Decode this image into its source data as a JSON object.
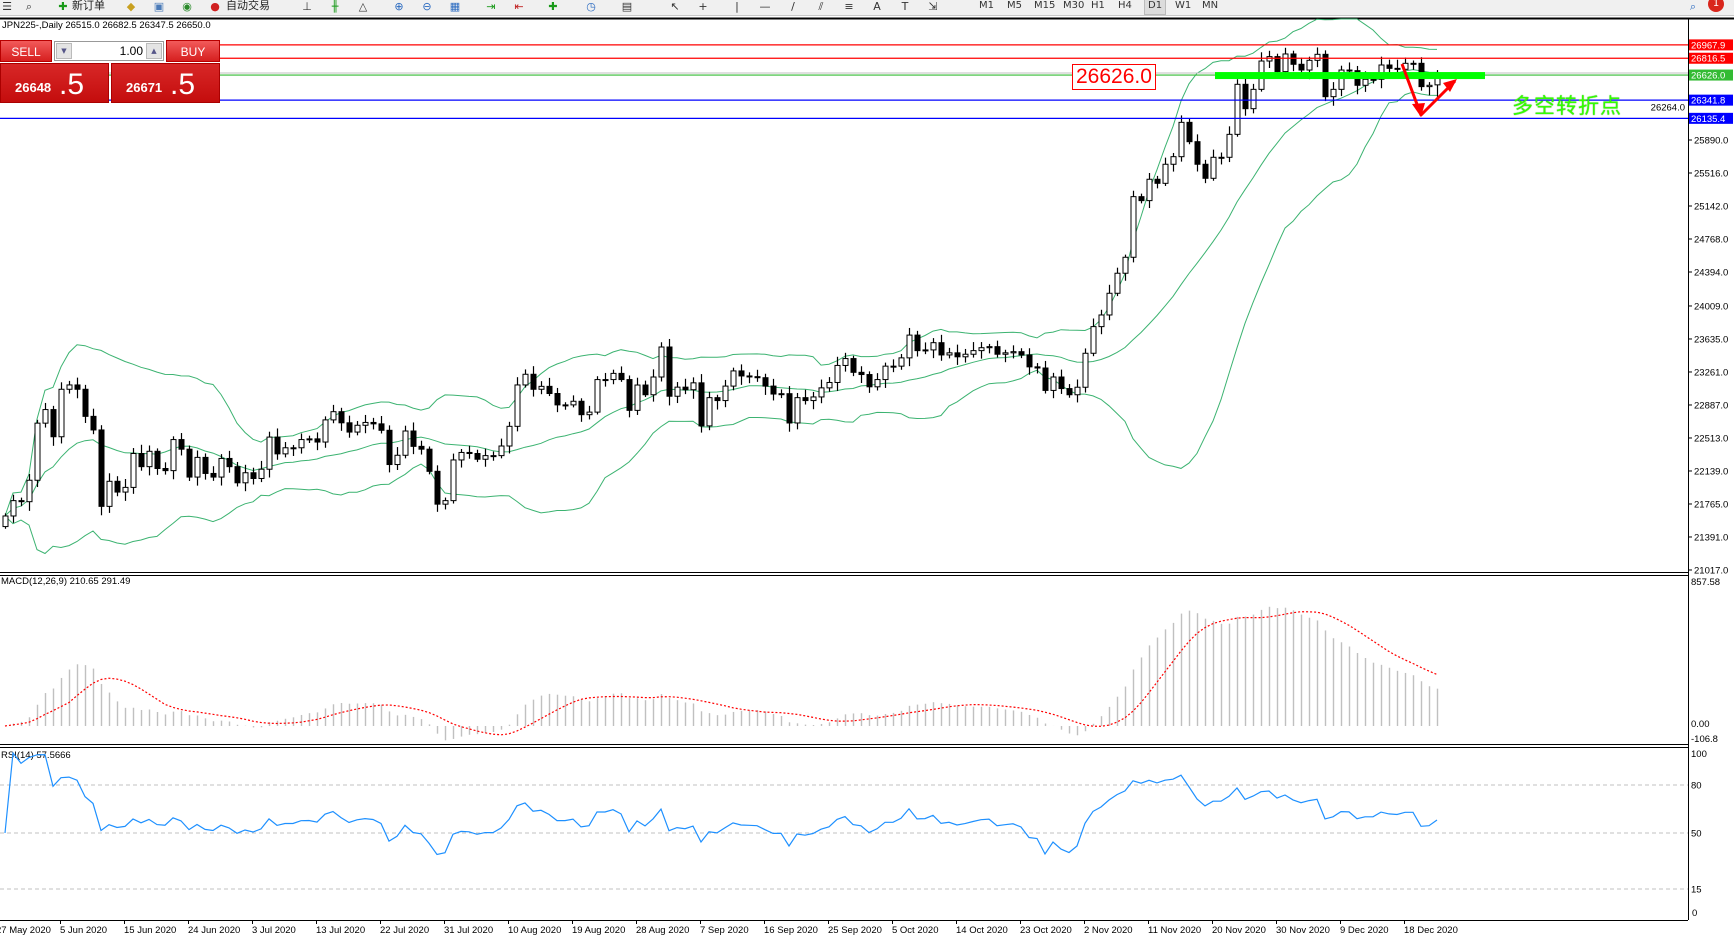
{
  "toolbar": {
    "new_order_label": "新订单",
    "auto_trading_label": "自动交易",
    "timeframes": [
      "M1",
      "M5",
      "M15",
      "M30",
      "H1",
      "H4",
      "D1",
      "W1",
      "MN"
    ],
    "active_timeframe": "D1",
    "notification_count": "1"
  },
  "chart_header": "JPN225-,Daily  26515.0 26682.5 26347.5 26650.0",
  "one_click": {
    "sell_label": "SELL",
    "buy_label": "BUY",
    "lot": "1.00",
    "sell_price_main": "26648",
    "sell_price_big": ".5",
    "buy_price_main": "26671",
    "buy_price_big": ".5"
  },
  "annotations": {
    "price_box": "26626.0",
    "pivot_text": "多空转折点",
    "pivot_bar_color": "#00ff00",
    "arrow_color": "#ff0000"
  },
  "chart_data": {
    "type": "candlestick",
    "symbol": "JPN225-",
    "timeframe": "Daily",
    "last_bar": {
      "open": 26515.0,
      "high": 26682.5,
      "low": 26347.5,
      "close": 26650.0
    },
    "closes": [
      21629,
      21803,
      21791,
      22034,
      22681,
      22835,
      22527,
      23065,
      23114,
      23065,
      22758,
      22604,
      21738,
      22022,
      21900,
      21953,
      22337,
      22188,
      22362,
      22167,
      22143,
      22495,
      22386,
      22070,
      22293,
      22111,
      22070,
      22281,
      22188,
      22005,
      22119,
      22054,
      22159,
      22523,
      22333,
      22402,
      22402,
      22495,
      22503,
      22467,
      22718,
      22811,
      22685,
      22580,
      22657,
      22689,
      22673,
      22600,
      22212,
      22317,
      22592,
      22418,
      22386,
      22135,
      21763,
      21803,
      22264,
      22349,
      22337,
      22272,
      22313,
      22313,
      22422,
      22645,
      23114,
      23235,
      23065,
      23098,
      23017,
      22888,
      22888,
      22929,
      22777,
      22806,
      23175,
      23175,
      23245,
      23175,
      22826,
      23113,
      23003,
      23204,
      23544,
      22986,
      23089,
      23060,
      23138,
      22650,
      22970,
      22937,
      23101,
      23273,
      23216,
      23208,
      23196,
      23101,
      23011,
      23015,
      22683,
      22970,
      22937,
      22978,
      23081,
      23142,
      23335,
      23413,
      23257,
      23232,
      23093,
      23175,
      23327,
      23327,
      23421,
      23679,
      23503,
      23511,
      23593,
      23454,
      23478,
      23433,
      23462,
      23503,
      23536,
      23548,
      23462,
      23478,
      23491,
      23454,
      23319,
      23306,
      23052,
      23204,
      23073,
      23003,
      23088,
      23473,
      23775,
      23907,
      24153,
      24380,
      24561,
      25248,
      25203,
      25445,
      25399,
      25615,
      25701,
      26090,
      25871,
      25615,
      25456,
      25694,
      25694,
      25954,
      26521,
      26245,
      26464,
      26785,
      26835,
      26665,
      26865,
      26748,
      26683,
      26793,
      26861,
      26381,
      26464,
      26683,
      26676,
      26510,
      26578,
      26578,
      26740,
      26702,
      26691,
      26759,
      26759,
      26495,
      26510,
      26650
    ],
    "date_labels": [
      "27 May 2020",
      "5 Jun 2020",
      "15 Jun 2020",
      "24 Jun 2020",
      "3 Jul 2020",
      "13 Jul 2020",
      "22 Jul 2020",
      "31 Jul 2020",
      "10 Aug 2020",
      "19 Aug 2020",
      "28 Aug 2020",
      "7 Sep 2020",
      "16 Sep 2020",
      "25 Sep 2020",
      "5 Oct 2020",
      "14 Oct 2020",
      "23 Oct 2020",
      "2 Nov 2020",
      "11 Nov 2020",
      "20 Nov 2020",
      "30 Nov 2020",
      "9 Dec 2020",
      "18 Dec 2020"
    ],
    "price_ticks": [
      "25890.0",
      "25516.0",
      "25142.0",
      "24768.0",
      "24394.0",
      "24009.0",
      "23635.0",
      "23261.0",
      "22887.0",
      "22513.0",
      "22139.0",
      "21765.0",
      "21391.0",
      "21017.0"
    ],
    "hlines": [
      {
        "value": 26967.9,
        "label": "26967.9",
        "color": "#ff0000"
      },
      {
        "value": 26816.5,
        "label": "26816.5",
        "color": "#ff0000"
      },
      {
        "value": 26626.0,
        "label": "26626.0",
        "color": "#33bb33"
      },
      {
        "value": 26341.8,
        "label": "26341.8",
        "color": "#0000ff"
      },
      {
        "value": 26135.4,
        "label": "26135.4",
        "color": "#0000ff"
      }
    ],
    "extra_axis_label": "26264.0",
    "bollinger": {
      "period": 20,
      "deviation": 2,
      "color": "#3cb371"
    },
    "macd": {
      "title": "MACD(12,26,9) 210.65 291.49",
      "scale_max": "857.58",
      "scale_zero": "0.00",
      "scale_min": "-106.8",
      "histogram_color": "#c0c0c0",
      "signal_color": "#ff0000"
    },
    "rsi": {
      "title": "RSI(14) 57.5666",
      "levels": [
        "80",
        "50",
        "15"
      ],
      "scale_top": "100",
      "scale_bottom": "0",
      "line_color": "#1e90ff"
    }
  }
}
